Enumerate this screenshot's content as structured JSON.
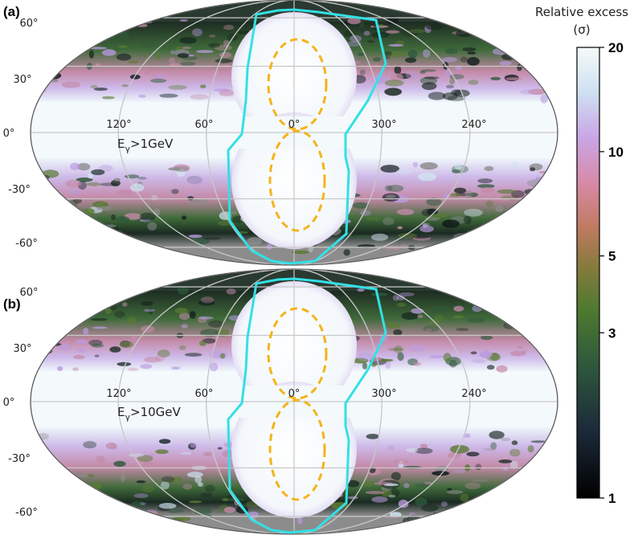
{
  "panels": [
    {
      "tag": "(a)",
      "energy": {
        "prefix": "E",
        "sub": "γ",
        "suffix": ">1GeV"
      }
    },
    {
      "tag": "(b)",
      "energy": {
        "prefix": "E",
        "sub": "γ",
        "suffix": ">10GeV"
      }
    }
  ],
  "grid": {
    "lat_labels": [
      "60°",
      "30°",
      "0°",
      "-30°",
      "-60°"
    ],
    "lon_labels": [
      "120°",
      "60°",
      "0°",
      "300°",
      "240°"
    ]
  },
  "colorbar": {
    "title_line1": "Relative excess",
    "title_line2": "(σ)",
    "ticks": [
      "20",
      "10",
      "5",
      "3",
      "1"
    ],
    "tick_values": [
      20,
      10,
      5,
      3,
      1
    ],
    "scale": "log",
    "range": [
      1,
      20
    ]
  },
  "colors": {
    "region_outline": "#33e0e6",
    "bubble_outline": "#f5b31a",
    "masked": "#8c8c8c",
    "grid": "#c8c8c8"
  }
}
